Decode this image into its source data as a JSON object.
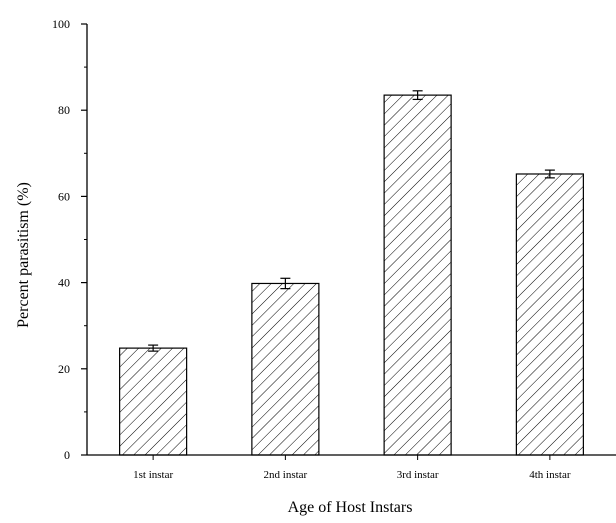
{
  "chart_data": {
    "type": "bar",
    "title": "",
    "xlabel": "Age of Host Instars",
    "ylabel": "Percent parasitism (%)",
    "categories": [
      "1st instar",
      "2nd instar",
      "3rd instar",
      "4th instar"
    ],
    "values": [
      24.8,
      39.8,
      83.5,
      65.2
    ],
    "errors": [
      0.7,
      1.2,
      1.0,
      0.9
    ],
    "ylim": [
      0,
      100
    ],
    "yticks": [
      0,
      20,
      40,
      60,
      80,
      100
    ],
    "yticks_minor": [
      10,
      30,
      50,
      70,
      90
    ],
    "bar_fill": "hatched",
    "colors": {
      "bar_stroke": "#000000",
      "hatch": "#000000",
      "axis": "#000000",
      "background": "#ffffff"
    },
    "grid": false,
    "legend": "none"
  }
}
